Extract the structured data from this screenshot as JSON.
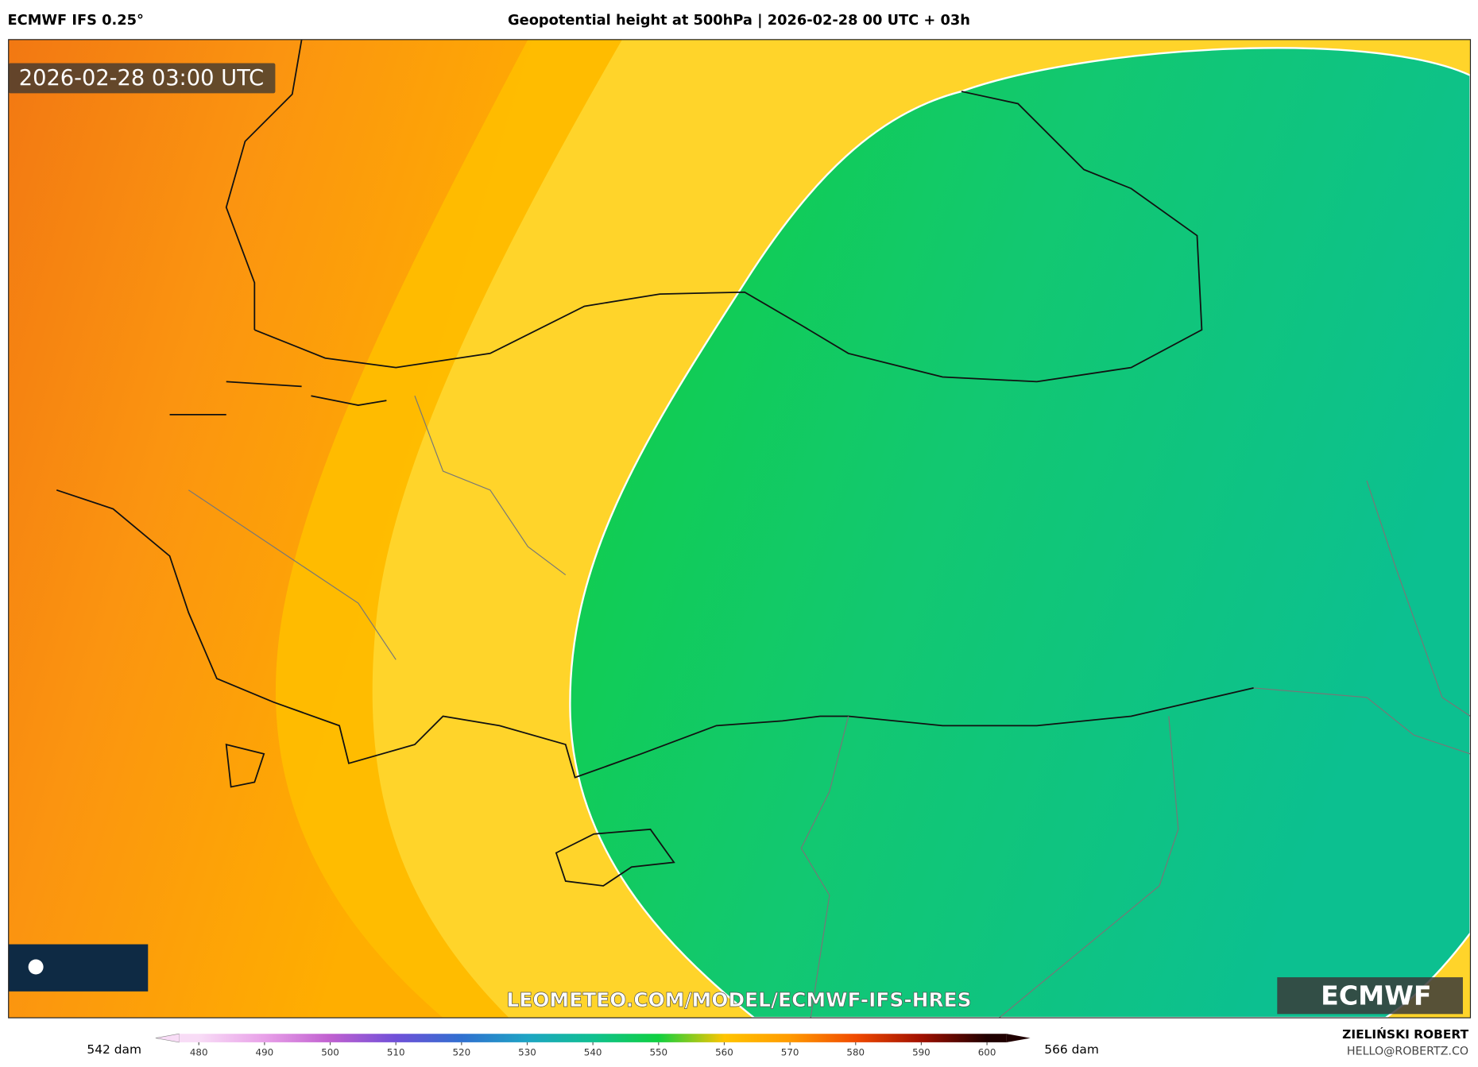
{
  "header": {
    "model": "ECMWF IFS 0.25°",
    "title": "Geopotential height at 500hPa | 2026-02-28 00 UTC + 03h"
  },
  "map": {
    "timestamp": "2026-02-28 03:00 UTC",
    "url": "LEOMETEO.COM/MODEL/ECMWF-IFS-HRES",
    "logo": "ECMWF"
  },
  "colorbar": {
    "min_label": "542 dam",
    "max_label": "566 dam",
    "lim": [
      477,
      603
    ],
    "ticks": [
      480,
      490,
      500,
      510,
      520,
      530,
      540,
      550,
      560,
      570,
      580,
      590,
      600
    ],
    "colors": [
      "#f8dcf6",
      "#e8a0e8",
      "#c060d0",
      "#7050d8",
      "#3070d0",
      "#1ea4c4",
      "#10c090",
      "#10d040",
      "#ffc400",
      "#ff9a00",
      "#f04a00",
      "#a01000",
      "#200000"
    ]
  },
  "footer": {
    "author": "ZIELIŃSKI ROBERT",
    "email": "HELLO@ROBERTZ.CO"
  }
}
